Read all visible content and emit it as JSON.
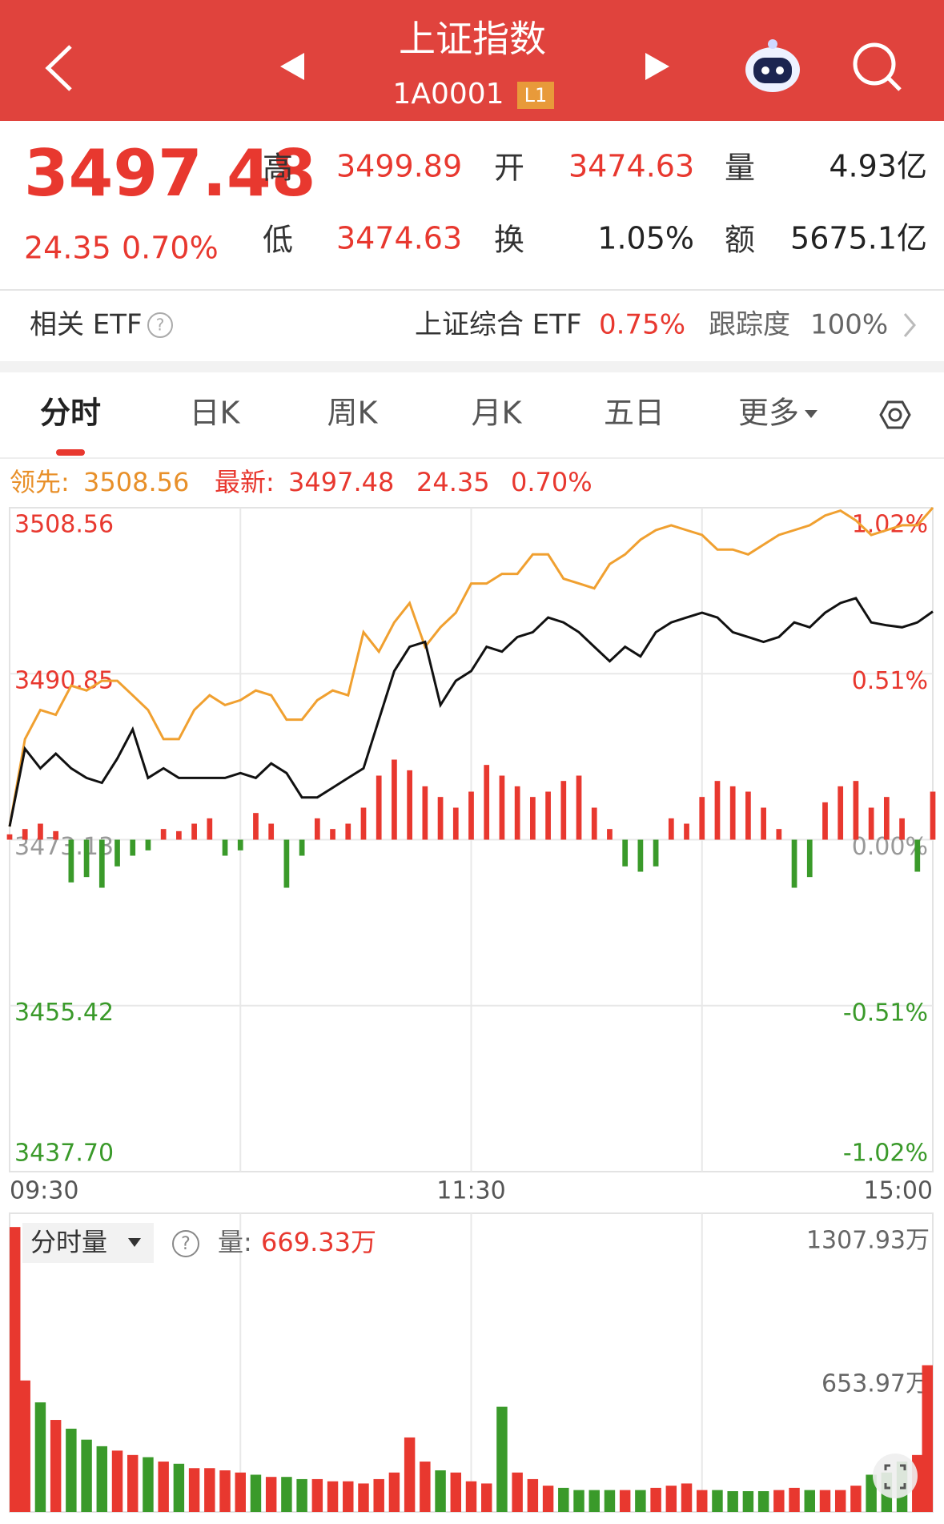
{
  "header": {
    "title": "上证指数",
    "code": "1A0001",
    "badge": "L1"
  },
  "quote": {
    "price": "3497.48",
    "change": "24.35",
    "change_pct": "0.70%",
    "high_label": "高",
    "high": "3499.89",
    "open_label": "开",
    "open": "3474.63",
    "vol_label": "量",
    "vol": "4.93亿",
    "low_label": "低",
    "low": "3474.63",
    "turnover_label": "换",
    "turnover": "1.05%",
    "amount_label": "额",
    "amount": "5675.1亿"
  },
  "etf": {
    "label": "相关 ETF",
    "help": "?",
    "name": "上证综合 ETF",
    "pct": "0.75%",
    "track_label": "跟踪度",
    "track": "100%"
  },
  "tabs": [
    "分时",
    "日K",
    "周K",
    "月K",
    "五日",
    "更多"
  ],
  "chart_data": [
    {
      "type": "line",
      "legend": {
        "lead_label": "领先:",
        "lead_value": "3508.56",
        "latest_label": "最新:",
        "latest_value": "3497.48",
        "change": "24.35",
        "change_pct": "0.70%"
      },
      "xlim": [
        0,
        240
      ],
      "xticks": [
        {
          "value": 0,
          "label": "09:30"
        },
        {
          "value": 120,
          "label": "11:30"
        },
        {
          "value": 240,
          "label": "15:00"
        }
      ],
      "ylim": [
        3437.7,
        3508.56
      ],
      "yticks": [
        {
          "value": 3437.7,
          "label": "3437.70"
        },
        3455.42,
        3473.13,
        3490.85,
        3508.56
      ],
      "y2lim": [
        -1.02,
        1.02
      ],
      "y2ticks": [
        {
          "value": -1.02,
          "label": "-1.02%"
        },
        {
          "value": -0.51,
          "label": "-0.51%"
        },
        {
          "value": 0,
          "label": "0.00%"
        },
        {
          "value": 0.51,
          "label": "0.51%"
        },
        {
          "value": 1.02,
          "label": "1.02%"
        }
      ],
      "up_color": "#e8382f",
      "down_color": "#3a9a2a",
      "flat_color": "#999999",
      "grid": true,
      "x": [
        0,
        4,
        8,
        12,
        16,
        20,
        24,
        28,
        32,
        36,
        40,
        44,
        48,
        52,
        56,
        60,
        64,
        68,
        72,
        76,
        80,
        84,
        88,
        92,
        96,
        100,
        104,
        108,
        112,
        116,
        120,
        124,
        128,
        132,
        136,
        140,
        144,
        148,
        152,
        156,
        160,
        164,
        168,
        172,
        176,
        180,
        184,
        188,
        192,
        196,
        200,
        204,
        208,
        212,
        216,
        220,
        224,
        228,
        232,
        236,
        240
      ],
      "series": [
        {
          "color": "#f0a030",
          "values": [
            3474.53,
            3483.87,
            3486.98,
            3486.46,
            3489.57,
            3489.05,
            3490.09,
            3490.09,
            3488.54,
            3486.98,
            3483.87,
            3483.87,
            3486.98,
            3488.54,
            3487.5,
            3488.02,
            3489.05,
            3488.54,
            3485.94,
            3485.94,
            3488.02,
            3489.05,
            3488.54,
            3495.28,
            3493.2,
            3496.32,
            3498.39,
            3493.72,
            3495.8,
            3497.35,
            3500.47,
            3500.47,
            3501.5,
            3501.5,
            3503.58,
            3503.58,
            3500.99,
            3500.47,
            3499.95,
            3502.54,
            3503.58,
            3505.14,
            3506.17,
            3506.69,
            3506.17,
            3505.65,
            3504.1,
            3504.1,
            3503.58,
            3504.62,
            3505.65,
            3506.17,
            3506.69,
            3507.73,
            3508.25,
            3507.21,
            3505.65,
            3506.17,
            3506.69,
            3506.69,
            3508.56
          ]
        },
        {
          "color": "#111111",
          "values": [
            3474.53,
            3482.83,
            3480.75,
            3482.31,
            3480.75,
            3479.72,
            3479.2,
            3481.79,
            3484.9,
            3479.72,
            3480.75,
            3479.72,
            3479.72,
            3479.72,
            3479.72,
            3480.24,
            3479.72,
            3481.27,
            3480.24,
            3477.64,
            3477.64,
            3478.68,
            3479.72,
            3480.75,
            3485.94,
            3491.13,
            3493.72,
            3494.24,
            3487.5,
            3490.09,
            3491.13,
            3493.72,
            3493.2,
            3494.76,
            3495.28,
            3496.84,
            3496.32,
            3495.28,
            3493.72,
            3492.17,
            3493.72,
            3492.69,
            3495.28,
            3496.32,
            3496.84,
            3497.35,
            3496.84,
            3495.28,
            3494.76,
            3494.24,
            3494.76,
            3496.32,
            3495.8,
            3497.35,
            3498.39,
            3498.91,
            3496.32,
            3496.01,
            3495.8,
            3496.32,
            3497.48
          ]
        }
      ],
      "bars": {
        "values": [
          5,
          10,
          15,
          8,
          -40,
          -35,
          -45,
          -25,
          -15,
          -10,
          10,
          8,
          15,
          20,
          -15,
          -10,
          25,
          15,
          -45,
          -15,
          20,
          10,
          15,
          30,
          60,
          75,
          65,
          50,
          40,
          30,
          45,
          70,
          60,
          50,
          40,
          45,
          55,
          60,
          30,
          10,
          -25,
          -30,
          -25,
          20,
          15,
          40,
          55,
          50,
          45,
          30,
          10,
          -45,
          -35,
          35,
          50,
          55,
          30,
          40,
          20,
          -30,
          45
        ]
      }
    },
    {
      "type": "bar",
      "selector": "分时量",
      "help": "?",
      "volume_label": "量:",
      "volume_value": "669.33万",
      "up_color": "#e8382f",
      "down_color": "#3a9a2a",
      "ylim": [
        0,
        1307.93
      ],
      "yticks": [
        {
          "value": 653.97,
          "label": "653.97万"
        },
        {
          "value": 1307.93,
          "label": "1307.93万"
        }
      ],
      "x": [
        0,
        4,
        8,
        12,
        16,
        20,
        24,
        28,
        32,
        36,
        40,
        44,
        48,
        52,
        56,
        60,
        64,
        68,
        72,
        76,
        80,
        84,
        88,
        92,
        96,
        100,
        104,
        108,
        112,
        116,
        120,
        124,
        128,
        132,
        136,
        140,
        144,
        148,
        152,
        156,
        160,
        164,
        168,
        172,
        176,
        180,
        184,
        188,
        192,
        196,
        200,
        204,
        208,
        212,
        216,
        220,
        224,
        228,
        232,
        236,
        240
      ],
      "values": [
        1300,
        600,
        500,
        420,
        380,
        330,
        300,
        280,
        260,
        250,
        230,
        220,
        200,
        200,
        190,
        180,
        170,
        160,
        160,
        150,
        150,
        140,
        140,
        130,
        150,
        180,
        340,
        230,
        190,
        180,
        140,
        130,
        480,
        180,
        150,
        120,
        110,
        100,
        100,
        100,
        100,
        100,
        110,
        120,
        130,
        100,
        100,
        95,
        95,
        95,
        100,
        110,
        100,
        100,
        100,
        120,
        170,
        180,
        230,
        260,
        669.33
      ]
    }
  ]
}
